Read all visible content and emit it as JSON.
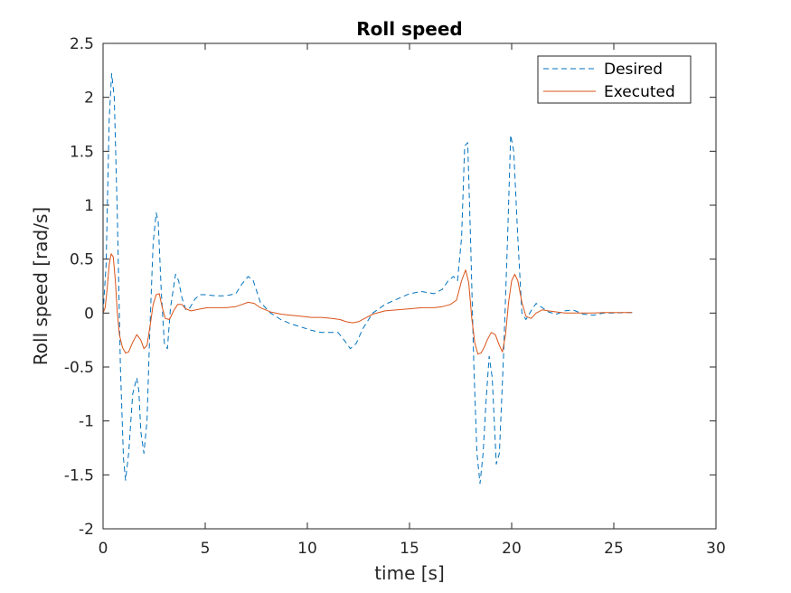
{
  "chart_data": {
    "type": "line",
    "title": "Roll speed",
    "xlabel": "time [s]",
    "ylabel": "Roll speed [rad/s]",
    "xlim": [
      0,
      30
    ],
    "ylim": [
      -2,
      2.5
    ],
    "xticks": [
      0,
      5,
      10,
      15,
      20,
      25,
      30
    ],
    "yticks": [
      -2,
      -1.5,
      -1,
      -0.5,
      0,
      0.5,
      1,
      1.5,
      2,
      2.5
    ],
    "xtick_labels": [
      "0",
      "5",
      "10",
      "15",
      "20",
      "25",
      "30"
    ],
    "ytick_labels": [
      "-2",
      "-1.5",
      "-1",
      "-0.5",
      "0",
      "0.5",
      "1",
      "1.5",
      "2",
      "2.5"
    ],
    "grid": false,
    "legend_position": "top-right",
    "series": [
      {
        "name": "Desired",
        "color": "#0072BD",
        "style": "dashed",
        "x": [
          0,
          0.15,
          0.3,
          0.42,
          0.55,
          0.7,
          0.85,
          1.0,
          1.1,
          1.25,
          1.45,
          1.65,
          1.75,
          1.85,
          2.0,
          2.15,
          2.3,
          2.45,
          2.6,
          2.7,
          2.85,
          3.0,
          3.15,
          3.3,
          3.55,
          3.7,
          3.85,
          4.05,
          4.25,
          4.5,
          4.75,
          5.0,
          5.5,
          6.0,
          6.5,
          6.8,
          7.1,
          7.35,
          7.7,
          8.2,
          8.7,
          9.2,
          9.7,
          10.2,
          10.7,
          11.2,
          11.5,
          11.8,
          12.1,
          12.4,
          12.7,
          13.2,
          13.8,
          14.4,
          15.0,
          15.6,
          16.2,
          16.6,
          16.9,
          17.15,
          17.35,
          17.55,
          17.7,
          17.85,
          18.0,
          18.15,
          18.3,
          18.45,
          18.6,
          18.75,
          18.9,
          19.05,
          19.25,
          19.4,
          19.6,
          19.8,
          19.95,
          20.1,
          20.3,
          20.5,
          20.7,
          20.95,
          21.2,
          21.5,
          21.8,
          22.2,
          22.6,
          23.0,
          23.5,
          24.0,
          24.5,
          25.0,
          25.5,
          25.9
        ],
        "y": [
          0.0,
          0.45,
          1.8,
          2.22,
          2.0,
          0.9,
          -0.5,
          -1.35,
          -1.55,
          -1.3,
          -0.75,
          -0.6,
          -0.72,
          -1.1,
          -1.3,
          -1.0,
          -0.1,
          0.65,
          0.93,
          0.85,
          0.2,
          -0.28,
          -0.33,
          0.05,
          0.36,
          0.3,
          0.15,
          0.03,
          0.05,
          0.13,
          0.17,
          0.17,
          0.16,
          0.16,
          0.18,
          0.27,
          0.34,
          0.3,
          0.1,
          0.0,
          -0.06,
          -0.1,
          -0.13,
          -0.16,
          -0.18,
          -0.18,
          -0.18,
          -0.25,
          -0.33,
          -0.28,
          -0.15,
          0.0,
          0.08,
          0.13,
          0.18,
          0.2,
          0.18,
          0.22,
          0.3,
          0.34,
          0.3,
          0.7,
          1.55,
          1.58,
          0.6,
          -0.5,
          -1.3,
          -1.58,
          -1.3,
          -0.8,
          -0.4,
          -0.6,
          -1.4,
          -1.3,
          -0.4,
          0.7,
          1.65,
          1.5,
          0.7,
          0.0,
          -0.06,
          0.02,
          0.09,
          0.05,
          0.01,
          -0.01,
          0.02,
          0.03,
          -0.01,
          -0.02,
          0.0,
          0.0,
          0.005,
          0.005
        ]
      },
      {
        "name": "Executed",
        "color": "#D95319",
        "style": "solid",
        "x": [
          0,
          0.1,
          0.2,
          0.3,
          0.4,
          0.5,
          0.6,
          0.7,
          0.8,
          0.95,
          1.1,
          1.25,
          1.45,
          1.65,
          1.85,
          2.0,
          2.15,
          2.3,
          2.45,
          2.6,
          2.75,
          2.9,
          3.05,
          3.25,
          3.45,
          3.65,
          3.85,
          4.05,
          4.3,
          4.55,
          4.8,
          5.1,
          5.5,
          6.0,
          6.5,
          6.8,
          7.1,
          7.4,
          7.7,
          8.2,
          8.7,
          9.2,
          9.7,
          10.2,
          10.7,
          11.2,
          11.6,
          11.9,
          12.2,
          12.5,
          12.8,
          13.2,
          13.8,
          14.4,
          15.0,
          15.6,
          16.2,
          16.6,
          17.0,
          17.3,
          17.55,
          17.75,
          17.9,
          18.05,
          18.2,
          18.35,
          18.5,
          18.65,
          18.8,
          19.0,
          19.2,
          19.4,
          19.55,
          19.7,
          19.85,
          20.0,
          20.15,
          20.3,
          20.5,
          20.7,
          20.95,
          21.2,
          21.5,
          21.8,
          22.2,
          22.6,
          23.0,
          23.5,
          24.0,
          24.5,
          25.0,
          25.5,
          25.9
        ],
        "y": [
          0.0,
          0.05,
          0.22,
          0.45,
          0.55,
          0.52,
          0.3,
          0.0,
          -0.2,
          -0.32,
          -0.37,
          -0.36,
          -0.27,
          -0.2,
          -0.25,
          -0.33,
          -0.3,
          -0.12,
          0.08,
          0.17,
          0.18,
          0.05,
          -0.05,
          -0.06,
          0.02,
          0.08,
          0.08,
          0.04,
          0.02,
          0.03,
          0.04,
          0.05,
          0.05,
          0.05,
          0.06,
          0.08,
          0.1,
          0.09,
          0.05,
          0.01,
          -0.01,
          -0.02,
          -0.03,
          -0.04,
          -0.04,
          -0.05,
          -0.06,
          -0.08,
          -0.09,
          -0.08,
          -0.05,
          -0.01,
          0.02,
          0.03,
          0.04,
          0.05,
          0.05,
          0.06,
          0.08,
          0.12,
          0.3,
          0.4,
          0.28,
          -0.05,
          -0.28,
          -0.38,
          -0.37,
          -0.32,
          -0.25,
          -0.18,
          -0.2,
          -0.3,
          -0.36,
          -0.2,
          0.1,
          0.3,
          0.36,
          0.3,
          0.1,
          -0.03,
          -0.05,
          0.0,
          0.03,
          0.02,
          0.01,
          0.0,
          0.0,
          0.0,
          0.0,
          0.005,
          0.005,
          0.005,
          0.005
        ]
      }
    ]
  }
}
